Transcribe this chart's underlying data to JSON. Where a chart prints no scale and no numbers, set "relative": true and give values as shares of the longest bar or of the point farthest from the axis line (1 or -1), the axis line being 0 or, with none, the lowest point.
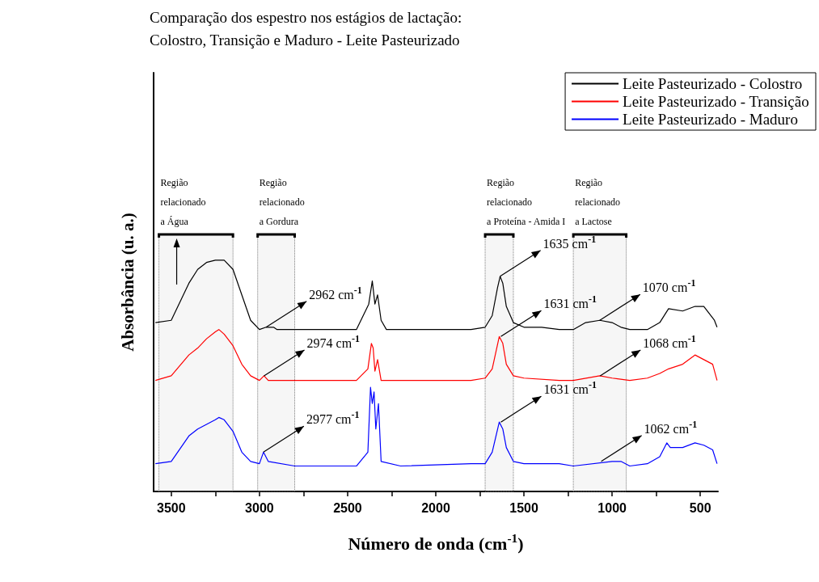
{
  "chart_data": {
    "type": "line",
    "title": "Comparação dos espestro nos estágios de lactação:\nColostro, Transição e Maduro - Leite Pasteurizado",
    "xlabel": "Número de onda (cm$^{-1}$)",
    "ylabel": "Absorbância (u. a.)",
    "relative": true,
    "legend": "top right",
    "marker": "none",
    "xlim": [
      3600,
      400
    ],
    "xticks": [
      3500,
      {
        "value": 3250,
        "label": null
      },
      3000,
      {
        "value": 2750,
        "label": null
      },
      2500,
      {
        "value": 2250,
        "label": null
      },
      2000,
      {
        "value": 1750,
        "label": null
      },
      1500,
      {
        "value": 1250,
        "label": null
      },
      1000,
      {
        "value": 750,
        "label": null
      },
      500
    ],
    "series": [
      {
        "name": "Leite Pasteurizado - Colostro",
        "color": "#000000",
        "x": [
          3590,
          3500,
          3400,
          3350,
          3300,
          3250,
          3200,
          3150,
          3100,
          3050,
          3000,
          2962,
          2920,
          2900,
          2850,
          2800,
          2600,
          2450,
          2380,
          2360,
          2345,
          2330,
          2310,
          2280,
          2200,
          2000,
          1800,
          1720,
          1680,
          1650,
          1635,
          1620,
          1600,
          1560,
          1500,
          1400,
          1300,
          1220,
          1150,
          1070,
          1000,
          950,
          900,
          800,
          730,
          680,
          600,
          530,
          480,
          450,
          420,
          405
        ],
        "values": [
          0.73,
          0.74,
          0.9,
          0.96,
          0.99,
          1,
          1,
          0.96,
          0.85,
          0.74,
          0.7,
          0.71,
          0.71,
          0.7,
          0.7,
          0.7,
          0.7,
          0.7,
          0.81,
          0.91,
          0.81,
          0.85,
          0.74,
          0.7,
          0.7,
          0.7,
          0.7,
          0.71,
          0.76,
          0.88,
          0.93,
          0.9,
          0.8,
          0.73,
          0.71,
          0.71,
          0.7,
          0.7,
          0.73,
          0.74,
          0.73,
          0.71,
          0.7,
          0.7,
          0.73,
          0.79,
          0.78,
          0.8,
          0.8,
          0.77,
          0.74,
          0.71
        ]
      },
      {
        "name": "Leite Pasteurizado - Transição",
        "color": "#ff0000",
        "x": [
          3590,
          3500,
          3400,
          3350,
          3300,
          3250,
          3230,
          3200,
          3150,
          3100,
          3050,
          3000,
          2974,
          2950,
          2800,
          2450,
          2385,
          2365,
          2355,
          2345,
          2330,
          2310,
          2200,
          1800,
          1720,
          1680,
          1640,
          1620,
          1600,
          1560,
          1500,
          1300,
          1220,
          1070,
          1000,
          900,
          800,
          730,
          680,
          600,
          530,
          480,
          430,
          405
        ],
        "values": [
          0.48,
          0.5,
          0.59,
          0.62,
          0.66,
          0.69,
          0.7,
          0.68,
          0.63,
          0.55,
          0.5,
          0.48,
          0.5,
          0.48,
          0.48,
          0.48,
          0.53,
          0.64,
          0.62,
          0.52,
          0.57,
          0.48,
          0.48,
          0.48,
          0.49,
          0.53,
          0.67,
          0.64,
          0.55,
          0.5,
          0.49,
          0.48,
          0.48,
          0.5,
          0.49,
          0.48,
          0.49,
          0.51,
          0.53,
          0.55,
          0.59,
          0.57,
          0.55,
          0.48
        ]
      },
      {
        "name": "Leite Pasteurizado - Maduro",
        "color": "#0000ff",
        "x": [
          3590,
          3500,
          3400,
          3350,
          3300,
          3250,
          3230,
          3200,
          3150,
          3100,
          3050,
          3000,
          2977,
          2950,
          2800,
          2450,
          2385,
          2370,
          2360,
          2350,
          2340,
          2325,
          2310,
          2200,
          1800,
          1720,
          1680,
          1640,
          1620,
          1600,
          1560,
          1500,
          1300,
          1220,
          1000,
          950,
          900,
          800,
          730,
          690,
          670,
          600,
          530,
          480,
          430,
          405
        ],
        "values": [
          0.12,
          0.13,
          0.24,
          0.27,
          0.29,
          0.31,
          0.32,
          0.31,
          0.26,
          0.17,
          0.13,
          0.12,
          0.17,
          0.13,
          0.11,
          0.11,
          0.17,
          0.45,
          0.38,
          0.43,
          0.27,
          0.38,
          0.13,
          0.11,
          0.12,
          0.12,
          0.17,
          0.3,
          0.27,
          0.19,
          0.13,
          0.12,
          0.12,
          0.11,
          0.13,
          0.13,
          0.11,
          0.12,
          0.15,
          0.21,
          0.19,
          0.19,
          0.21,
          0.2,
          0.18,
          0.12
        ]
      }
    ],
    "bands": [
      {
        "axis": "x",
        "from": 3570,
        "to": 3150,
        "label": "Região\nrelacionado\na Água"
      },
      {
        "axis": "x",
        "from": 3010,
        "to": 2800,
        "label": "Região\nrelacionado\na Gordura"
      },
      {
        "axis": "x",
        "from": 1720,
        "to": 1560,
        "label": "Região\nrelacionado\na Proteína - Amida I"
      },
      {
        "axis": "x",
        "from": 1220,
        "to": 920,
        "label": "Região\nrelacionado\na Lactose"
      }
    ],
    "annotations": [
      {
        "text": "2962 cm$^{-1}$",
        "x": 2962,
        "y": 0.71
      },
      {
        "text": "2974 cm$^{-1}$",
        "x": 2974,
        "y": 0.5
      },
      {
        "text": "2977 cm$^{-1}$",
        "x": 2977,
        "y": 0.17
      },
      {
        "text": "1635 cm$^{-1}$",
        "x": 1635,
        "y": 0.93
      },
      {
        "text": "1631 cm$^{-1}$",
        "x": 1631,
        "y": 0.67
      },
      {
        "text": "1631 cm$^{-1}$",
        "x": 1631,
        "y": 0.3
      },
      {
        "text": "1070 cm$^{-1}$",
        "x": 1070,
        "y": 0.74
      },
      {
        "text": "1068 cm$^{-1}$",
        "x": 1068,
        "y": 0.5
      },
      {
        "text": "1062 cm$^{-1}$",
        "x": 1062,
        "y": 0.13
      }
    ]
  }
}
